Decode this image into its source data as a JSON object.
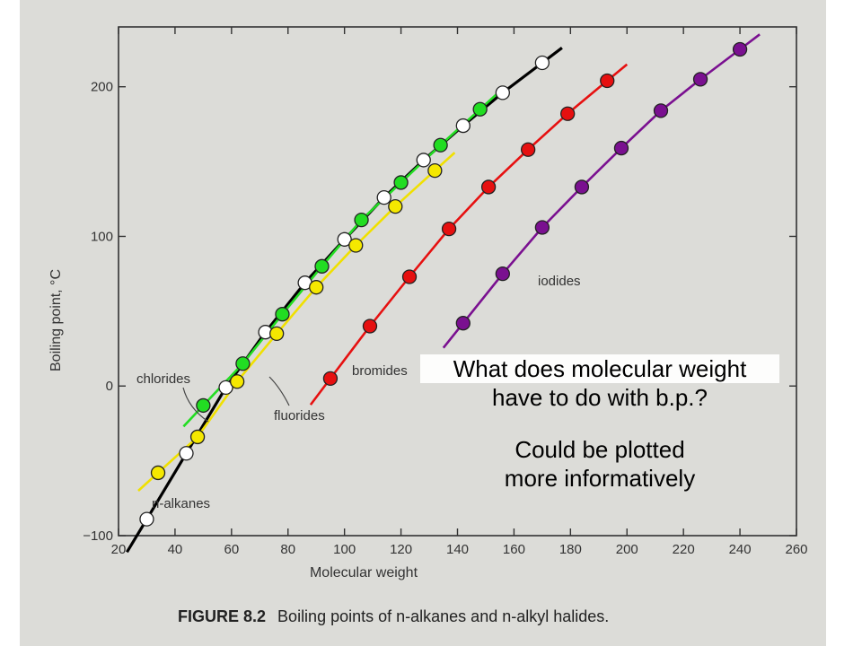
{
  "chart_data": {
    "type": "scatter",
    "xlabel": "Molecular weight",
    "ylabel": "Boiling point, °C",
    "xlim": [
      20,
      260
    ],
    "ylim": [
      -100,
      240
    ],
    "xticks": [
      20,
      40,
      60,
      80,
      100,
      120,
      140,
      160,
      180,
      200,
      220,
      240,
      260
    ],
    "yticks": [
      -100,
      0,
      100,
      200
    ],
    "grid": false,
    "series": [
      {
        "name": "n-alkanes",
        "label": "n-alkanes",
        "color": "#000000",
        "marker": "white-circle",
        "x": [
          30,
          44,
          58,
          72,
          86,
          100,
          114,
          128,
          142,
          156,
          170
        ],
        "y": [
          -89,
          -45,
          -1,
          36,
          69,
          98,
          126,
          151,
          174,
          196,
          216
        ]
      },
      {
        "name": "fluorides",
        "label": "fluorides",
        "color": "#f0e000",
        "marker": "yellow-circle",
        "x": [
          34,
          48,
          62,
          76,
          90,
          104,
          118,
          132
        ],
        "y": [
          -58,
          -34,
          3,
          35,
          66,
          94,
          120,
          144
        ]
      },
      {
        "name": "chlorides",
        "label": "chlorides",
        "color": "#22dd22",
        "marker": "green-circle",
        "x": [
          50,
          64,
          78,
          92,
          106,
          120,
          134,
          148
        ],
        "y": [
          -13,
          15,
          48,
          80,
          111,
          136,
          161,
          185
        ]
      },
      {
        "name": "bromides",
        "label": "bromides",
        "color": "#e61010",
        "marker": "red-circle",
        "x": [
          95,
          109,
          123,
          137,
          151,
          165,
          179,
          193
        ],
        "y": [
          5,
          40,
          73,
          105,
          133,
          158,
          182,
          204
        ]
      },
      {
        "name": "iodides",
        "label": "iodides",
        "color": "#7a1090",
        "marker": "purple-circle",
        "x": [
          142,
          156,
          170,
          184,
          198,
          212,
          226,
          240
        ],
        "y": [
          42,
          75,
          106,
          133,
          159,
          184,
          205,
          225
        ]
      }
    ],
    "caption_label": "FIGURE 8.2",
    "caption_text": "Boiling points of n-alkanes and n-alkyl halides."
  },
  "annotations": {
    "question_line1": "What does molecular weight",
    "question_line2": "have to do with b.p.?",
    "comment_line1": "Could be plotted",
    "comment_line2": "more informatively"
  }
}
